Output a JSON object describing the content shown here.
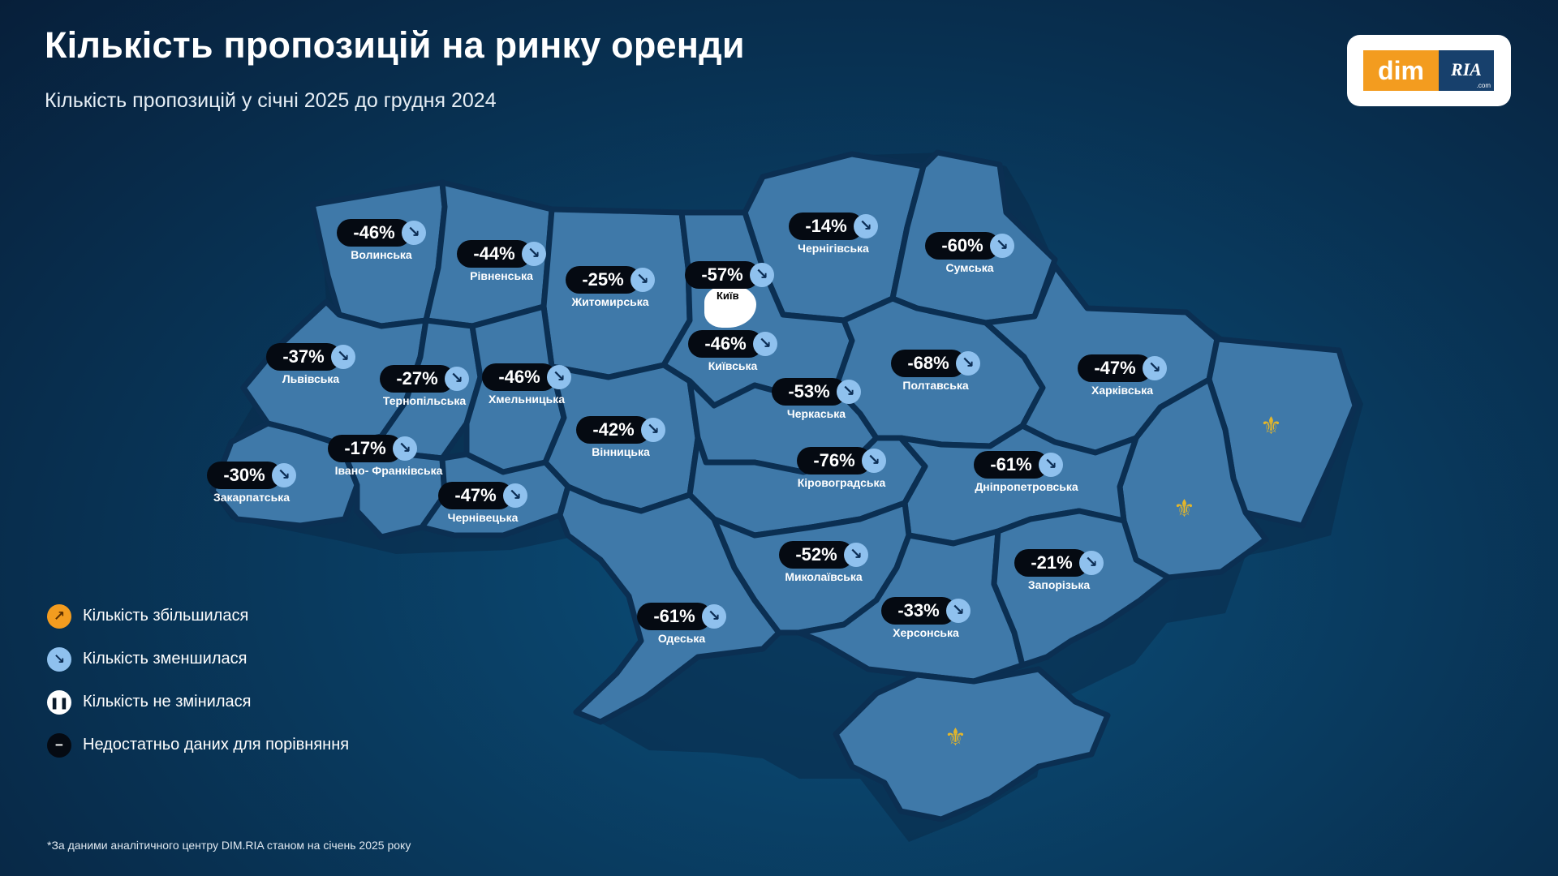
{
  "title": "Кількість пропозицій на ринку оренди",
  "subtitle": "Кількість пропозицій у січні 2025 до грудня 2024",
  "logo": {
    "left": "dim",
    "right": "RIA",
    "suffix": ".com"
  },
  "colors": {
    "increase": "#f39c1f",
    "decrease": "#8fc1ee",
    "unchanged": "#ffffff",
    "no_data": "#050a12",
    "map_fill": "#3f79a9",
    "accent": "#e4b62a"
  },
  "kyiv_label": "Київ",
  "regions": [
    {
      "name": "Волинська",
      "value": "-46%",
      "trend": "decrease"
    },
    {
      "name": "Рівненська",
      "value": "-44%",
      "trend": "decrease"
    },
    {
      "name": "Житомирська",
      "value": "-25%",
      "trend": "decrease"
    },
    {
      "name": "Київ",
      "value": "-57%",
      "trend": "decrease"
    },
    {
      "name": "Чернігівська",
      "value": "-14%",
      "trend": "decrease"
    },
    {
      "name": "Сумська",
      "value": "-60%",
      "trend": "decrease"
    },
    {
      "name": "Львівська",
      "value": "-37%",
      "trend": "decrease"
    },
    {
      "name": "Тернопільська",
      "value": "-27%",
      "trend": "decrease"
    },
    {
      "name": "Хмельницька",
      "value": "-46%",
      "trend": "decrease"
    },
    {
      "name": "Київська",
      "value": "-46%",
      "trend": "decrease"
    },
    {
      "name": "Полтавська",
      "value": "-68%",
      "trend": "decrease"
    },
    {
      "name": "Харківська",
      "value": "-47%",
      "trend": "decrease"
    },
    {
      "name": "Черкаська",
      "value": "-53%",
      "trend": "decrease"
    },
    {
      "name": "Вінницька",
      "value": "-42%",
      "trend": "decrease"
    },
    {
      "name": "Івано- Франківська",
      "value": "-17%",
      "trend": "decrease"
    },
    {
      "name": "Закарпатська",
      "value": "-30%",
      "trend": "decrease"
    },
    {
      "name": "Чернівецька",
      "value": "-47%",
      "trend": "decrease"
    },
    {
      "name": "Кіровоградська",
      "value": "-76%",
      "trend": "decrease"
    },
    {
      "name": "Дніпропетровська",
      "value": "-61%",
      "trend": "decrease"
    },
    {
      "name": "Миколаївська",
      "value": "-52%",
      "trend": "decrease"
    },
    {
      "name": "Запорізька",
      "value": "-21%",
      "trend": "decrease"
    },
    {
      "name": "Одеська",
      "value": "-61%",
      "trend": "decrease"
    },
    {
      "name": "Херсонська",
      "value": "-33%",
      "trend": "decrease"
    }
  ],
  "legend": [
    {
      "label": "Кількість збільшилася",
      "icon": "arrow-up-right-icon"
    },
    {
      "label": "Кількість зменшилася",
      "icon": "arrow-down-right-icon"
    },
    {
      "label": "Кількість не змінилася",
      "icon": "pause-icon"
    },
    {
      "label": "Недостатньо даних для порівняння",
      "icon": "minus-icon"
    }
  ],
  "footnote": "*За даними аналітичного центру DIM.RIA станом на січень 2025 року"
}
